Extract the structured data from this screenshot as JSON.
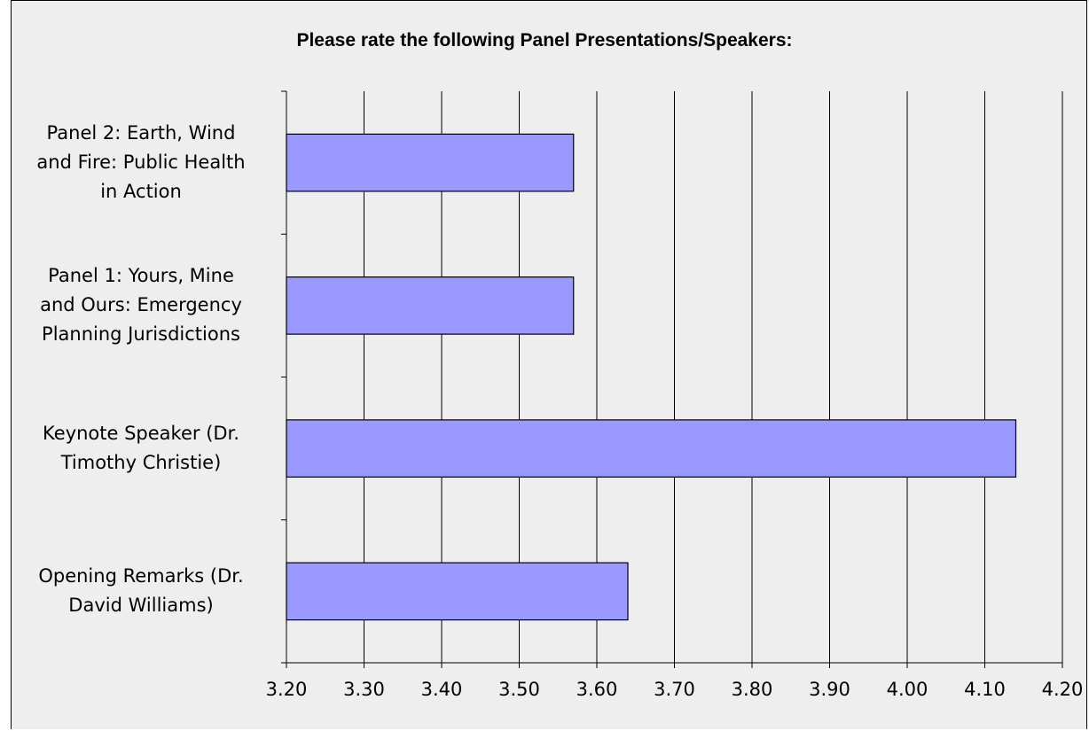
{
  "chart_data": {
    "type": "bar",
    "orientation": "horizontal",
    "title": "Please rate the following Panel Presentations/Speakers:",
    "categories": [
      "Panel 2: Earth, Wind and Fire: Public Health in Action",
      "Panel 1: Yours, Mine and Ours: Emergency Planning Jurisdictions",
      "Keynote Speaker (Dr. Timothy Christie)",
      "Opening Remarks (Dr. David Williams)"
    ],
    "category_lines": [
      [
        "Panel 2: Earth, Wind",
        "and Fire: Public Health",
        "in Action"
      ],
      [
        "Panel 1: Yours, Mine",
        "and Ours: Emergency",
        "Planning Jurisdictions"
      ],
      [
        "Keynote Speaker (Dr.",
        "Timothy Christie)"
      ],
      [
        "Opening Remarks (Dr.",
        "David Williams)"
      ]
    ],
    "values": [
      3.57,
      3.57,
      4.14,
      3.64
    ],
    "xlim": [
      3.2,
      4.2
    ],
    "ticks": [
      "3.20",
      "3.30",
      "3.40",
      "3.50",
      "3.60",
      "3.70",
      "3.80",
      "3.90",
      "4.00",
      "4.10",
      "4.20"
    ],
    "xlabel": "",
    "ylabel": "",
    "grid": true,
    "bar_color": "#9999ff",
    "bar_border_color": "#000000",
    "plot_background": "#eeeeee"
  }
}
